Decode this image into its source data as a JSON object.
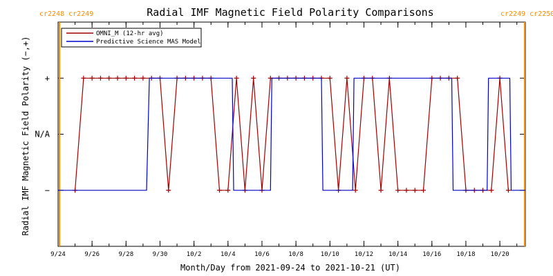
{
  "chart_data": {
    "type": "line",
    "title": "Radial IMF Magnetic Field Polarity Comparisons",
    "xlabel": "Month/Day from 2021-09-24 to 2021-10-21 (UT)",
    "ylabel": "Radial IMF Magnetic Field Polarity (−,+)",
    "x_unit": "days",
    "xlim": [
      "2021-09-24",
      "2021-10-21 12:00"
    ],
    "x_tick_labels": [
      "9/24",
      "9/26",
      "9/28",
      "9/30",
      "10/2",
      "10/4",
      "10/6",
      "10/8",
      "10/10",
      "10/12",
      "10/14",
      "10/16",
      "10/18",
      "10/20"
    ],
    "x_ticks": [
      "2021-09-24",
      "2021-09-26",
      "2021-09-28",
      "2021-09-30",
      "2021-10-02",
      "2021-10-04",
      "2021-10-06",
      "2021-10-08",
      "2021-10-10",
      "2021-10-12",
      "2021-10-14",
      "2021-10-16",
      "2021-10-18",
      "2021-10-20"
    ],
    "y_tick_labels": [
      "−",
      "N/A",
      "+"
    ],
    "y_ticks": [
      -1,
      0,
      1
    ],
    "ylim": [
      -2,
      2
    ],
    "grid": false,
    "legend_position": "top-left",
    "carrington_left": "cr2248 cr2249",
    "carrington_right": "cr2249 cr2250",
    "carrington_line_color": "#ff8c00",
    "carrington_boundaries": [
      "2021-09-24 02:00",
      "2021-10-21 11:00"
    ],
    "series": [
      {
        "name": "OMNI_M (12-hr avg)",
        "color": "#a00000",
        "marker": "plus",
        "x": [
          "2021-09-25",
          "2021-09-25 12:00",
          "2021-09-26",
          "2021-09-26 12:00",
          "2021-09-27",
          "2021-09-27 12:00",
          "2021-09-28",
          "2021-09-28 12:00",
          "2021-09-29",
          "2021-09-29 12:00",
          "2021-09-30",
          "2021-09-30 12:00",
          "2021-10-01",
          "2021-10-01 12:00",
          "2021-10-02",
          "2021-10-02 12:00",
          "2021-10-03",
          "2021-10-03 12:00",
          "2021-10-04",
          "2021-10-04 12:00",
          "2021-10-05",
          "2021-10-05 12:00",
          "2021-10-06",
          "2021-10-06 12:00",
          "2021-10-07",
          "2021-10-07 12:00",
          "2021-10-08",
          "2021-10-08 12:00",
          "2021-10-09",
          "2021-10-09 12:00",
          "2021-10-10",
          "2021-10-10 12:00",
          "2021-10-11",
          "2021-10-11 12:00",
          "2021-10-12",
          "2021-10-12 12:00",
          "2021-10-13",
          "2021-10-13 12:00",
          "2021-10-14",
          "2021-10-14 12:00",
          "2021-10-15",
          "2021-10-15 12:00",
          "2021-10-16",
          "2021-10-16 12:00",
          "2021-10-17",
          "2021-10-17 12:00",
          "2021-10-18",
          "2021-10-18 12:00",
          "2021-10-19",
          "2021-10-19 12:00",
          "2021-10-20",
          "2021-10-20 12:00"
        ],
        "values": [
          -1,
          1,
          1,
          1,
          1,
          1,
          1,
          1,
          1,
          1,
          1,
          -1,
          1,
          1,
          1,
          1,
          1,
          -1,
          -1,
          1,
          -1,
          1,
          -1,
          1,
          1,
          1,
          1,
          1,
          1,
          1,
          1,
          -1,
          1,
          -1,
          1,
          1,
          -1,
          1,
          -1,
          -1,
          -1,
          -1,
          1,
          1,
          1,
          1,
          -1,
          -1,
          -1,
          -1,
          1,
          -1
        ]
      },
      {
        "name": "Predictive Science MAS Model",
        "color": "#0000c8",
        "marker": "none",
        "x": [
          "2021-09-24",
          "2021-09-29 05:00",
          "2021-09-29 09:00",
          "2021-10-04 06:00",
          "2021-10-04 08:00",
          "2021-10-06 12:00",
          "2021-10-06 14:00",
          "2021-10-09 12:00",
          "2021-10-09 14:00",
          "2021-10-11 08:00",
          "2021-10-11 10:00",
          "2021-10-17 04:00",
          "2021-10-17 06:00",
          "2021-10-19 06:00",
          "2021-10-19 08:00",
          "2021-10-20 14:00",
          "2021-10-20 16:00",
          "2021-10-21 12:00"
        ],
        "values": [
          -1,
          -1,
          1,
          1,
          -1,
          -1,
          1,
          1,
          -1,
          -1,
          1,
          1,
          -1,
          -1,
          1,
          1,
          -1,
          -1
        ]
      }
    ]
  }
}
